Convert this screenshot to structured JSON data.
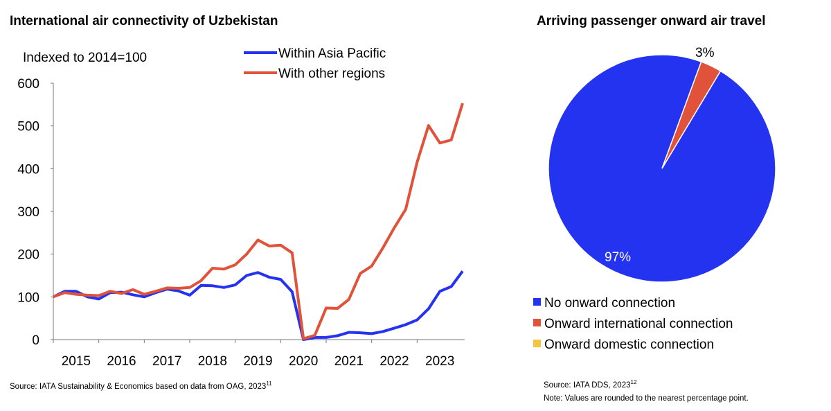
{
  "chart_data": [
    {
      "type": "line",
      "title": "International air connectivity of Uzbekistan",
      "ylabel": "Indexed to 2014=100",
      "ylim": [
        0,
        600
      ],
      "yticks": [
        "0",
        "100",
        "200",
        "300",
        "400",
        "500",
        "600"
      ],
      "xlim": [
        2015,
        2024
      ],
      "xtick_labels": [
        "2015",
        "2016",
        "2017",
        "2018",
        "2019",
        "2020",
        "2021",
        "2022",
        "2023"
      ],
      "grid": false,
      "legend_position": "top",
      "x": [
        2015,
        2015.25,
        2015.5,
        2015.75,
        2016,
        2016.25,
        2016.5,
        2016.75,
        2017,
        2017.25,
        2017.5,
        2017.75,
        2018,
        2018.25,
        2018.5,
        2018.75,
        2019,
        2019.25,
        2019.5,
        2019.75,
        2020,
        2020.25,
        2020.5,
        2020.75,
        2021,
        2021.25,
        2021.5,
        2021.75,
        2022,
        2022.25,
        2022.5,
        2022.75,
        2023,
        2023.25,
        2023.5,
        2023.75,
        2024
      ],
      "series": [
        {
          "name": "Within Asia Pacific",
          "color": "#2433f0",
          "values": [
            100,
            113,
            113,
            100,
            95,
            110,
            111,
            105,
            100,
            110,
            118,
            114,
            104,
            127,
            126,
            122,
            128,
            150,
            157,
            146,
            141,
            112,
            0,
            5,
            5,
            9,
            17,
            16,
            14,
            19,
            27,
            35,
            46,
            72,
            113,
            124,
            160
          ]
        },
        {
          "name": "With other regions",
          "color": "#e05239",
          "values": [
            100,
            110,
            106,
            104,
            103,
            113,
            108,
            117,
            106,
            113,
            121,
            120,
            122,
            138,
            167,
            165,
            175,
            200,
            233,
            219,
            221,
            203,
            2,
            10,
            74,
            73,
            94,
            155,
            172,
            215,
            262,
            305,
            415,
            501,
            460,
            467,
            553
          ]
        }
      ],
      "source": "Source: IATA Sustainability & Economics based on data from OAG, 2023",
      "source_ref": "11"
    },
    {
      "type": "pie",
      "title": "Arriving passenger onward air travel",
      "slices": [
        {
          "label": "No onward connection",
          "value": 97,
          "data_label": "97%",
          "color": "#2433f0"
        },
        {
          "label": "Onward international connection",
          "value": 3,
          "data_label": "3%",
          "color": "#e05239"
        },
        {
          "label": "Onward domestic connection",
          "value": 0,
          "data_label": "",
          "color": "#f5c242"
        }
      ],
      "legend_position": "bottom",
      "source": "Source: IATA DDS, 2023",
      "source_ref": "12",
      "note": "Note: Values are rounded to the nearest percentage point."
    }
  ]
}
